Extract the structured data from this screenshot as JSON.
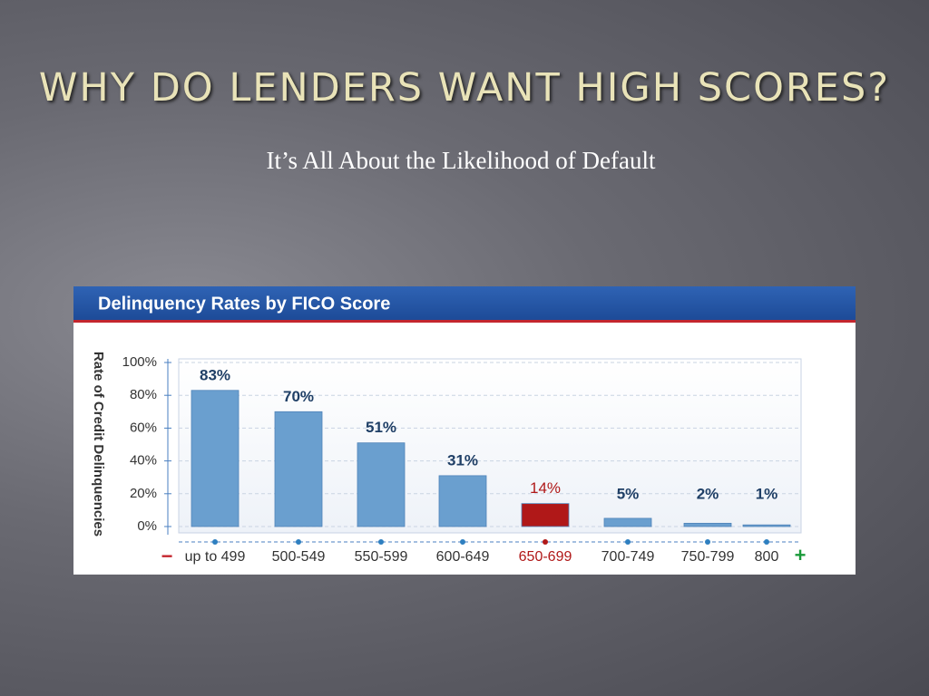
{
  "slide": {
    "title": "WHY DO LENDERS WANT HIGH SCORES?",
    "subtitle": "It’s All About the Likelihood of Default"
  },
  "chart_data": {
    "type": "bar",
    "title": "Delinquency Rates by FICO Score",
    "y_label": "Rate of Credit Delinquencies",
    "categories": [
      "up to 499",
      "500-549",
      "550-599",
      "600-649",
      "650-699",
      "700-749",
      "750-799",
      "800"
    ],
    "values": [
      83,
      70,
      51,
      31,
      14,
      5,
      2,
      1
    ],
    "value_labels": [
      "83%",
      "70%",
      "51%",
      "31%",
      "14%",
      "5%",
      "2%",
      "1%"
    ],
    "color": "#6a9fcf",
    "highlight": 4,
    "highlight_color": "#b01818",
    "ylim": [
      0,
      100
    ],
    "yticks": [
      {
        "value": 0,
        "label": "0%"
      },
      {
        "value": 20,
        "label": "20%"
      },
      {
        "value": 40,
        "label": "40%"
      },
      {
        "value": 60,
        "label": "60%"
      },
      {
        "value": 80,
        "label": "80%"
      },
      {
        "value": 100,
        "label": "100%"
      }
    ],
    "grid": true,
    "axis_ends": {
      "low": "−",
      "high": "+"
    }
  }
}
